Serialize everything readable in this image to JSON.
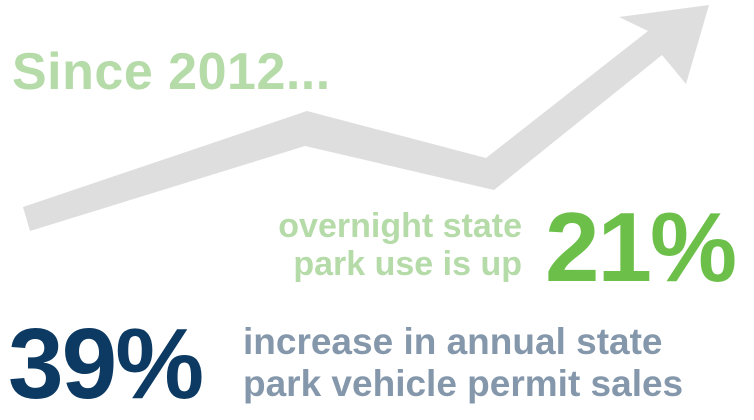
{
  "headline": "Since 2012...",
  "stats": [
    {
      "value": "21%",
      "lines": [
        "overnight state",
        "park use is up"
      ]
    },
    {
      "value": "39%",
      "lines": [
        "increase in annual state",
        "park vehicle permit sales"
      ]
    }
  ],
  "colors": {
    "headline": "#b5dba8",
    "stat1_value": "#6cc04a",
    "stat2_value": "#0d3a63",
    "stat2_text": "#8497ab",
    "arrow": "#dedede"
  },
  "icons": {
    "trend": "trend-up-arrow-icon"
  }
}
